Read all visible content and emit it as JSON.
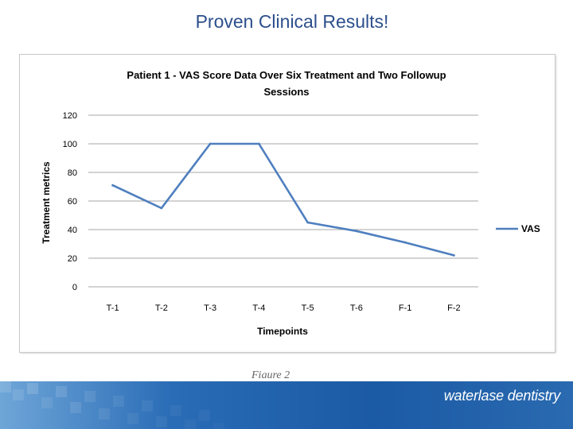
{
  "slide": {
    "title": "Proven Clinical Results!",
    "caption": "Figure 2",
    "brand": "waterlase dentistry"
  },
  "colors": {
    "title": "#2c4f8c",
    "series": "#4f7fbf",
    "footer": "#1b5aa5"
  },
  "chart_data": {
    "type": "line",
    "title_line1": "Patient 1 - VAS Score Data Over Six Treatment and Two Followup",
    "title_line2": "Sessions",
    "xlabel": "Timepoints",
    "ylabel": "Treatment metrics",
    "categories": [
      "T-1",
      "T-2",
      "T-3",
      "T-4",
      "T-5",
      "T-6",
      "F-1",
      "F-2"
    ],
    "yticks": [
      "0",
      "20",
      "40",
      "60",
      "80",
      "100",
      "120"
    ],
    "ylim": [
      0,
      120
    ],
    "grid": true,
    "legend_position": "right",
    "series": [
      {
        "name": "VAS",
        "values": [
          71,
          55,
          100,
          100,
          45,
          39,
          31,
          22
        ]
      }
    ]
  }
}
